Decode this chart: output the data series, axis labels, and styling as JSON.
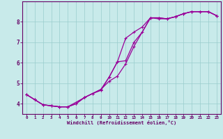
{
  "xlabel": "Windchill (Refroidissement éolien,°C)",
  "bg_color": "#c8eaea",
  "line_color": "#990099",
  "grid_color": "#99cccc",
  "axis_color": "#660066",
  "xlim": [
    -0.5,
    23.5
  ],
  "ylim": [
    3.5,
    9.0
  ],
  "xticks": [
    0,
    1,
    2,
    3,
    4,
    5,
    6,
    7,
    8,
    9,
    10,
    11,
    12,
    13,
    14,
    15,
    16,
    17,
    18,
    19,
    20,
    21,
    22,
    23
  ],
  "yticks": [
    4,
    5,
    6,
    7,
    8
  ],
  "curve1_x": [
    0,
    1,
    2,
    3,
    4,
    5,
    6,
    7,
    8,
    9,
    10,
    11,
    12,
    13,
    14,
    15,
    16,
    17,
    18,
    19,
    20,
    21,
    22,
    23
  ],
  "curve1_y": [
    4.45,
    4.2,
    3.95,
    3.9,
    3.85,
    3.85,
    4.0,
    4.3,
    4.5,
    4.65,
    5.3,
    6.05,
    7.2,
    7.5,
    7.75,
    8.2,
    8.2,
    8.15,
    8.25,
    8.4,
    8.5,
    8.5,
    8.5,
    8.3
  ],
  "curve2_x": [
    0,
    1,
    2,
    3,
    4,
    5,
    6,
    7,
    8,
    9,
    10,
    11,
    12,
    13,
    14,
    15,
    16,
    17,
    18,
    19,
    20,
    21,
    22,
    23
  ],
  "curve2_y": [
    4.45,
    4.2,
    3.95,
    3.9,
    3.85,
    3.85,
    4.0,
    4.3,
    4.5,
    4.7,
    5.3,
    6.05,
    6.1,
    7.0,
    7.5,
    8.2,
    8.2,
    8.15,
    8.25,
    8.4,
    8.5,
    8.5,
    8.5,
    8.3
  ],
  "curve3_x": [
    0,
    1,
    2,
    3,
    4,
    5,
    7,
    9,
    10,
    11,
    12,
    13,
    15,
    16,
    17,
    18,
    19,
    20,
    21,
    22,
    23
  ],
  "curve3_y": [
    4.45,
    4.2,
    3.95,
    3.9,
    3.85,
    3.85,
    4.3,
    4.7,
    5.1,
    5.35,
    5.95,
    6.8,
    8.2,
    8.15,
    8.15,
    8.25,
    8.4,
    8.5,
    8.5,
    8.5,
    8.3
  ]
}
